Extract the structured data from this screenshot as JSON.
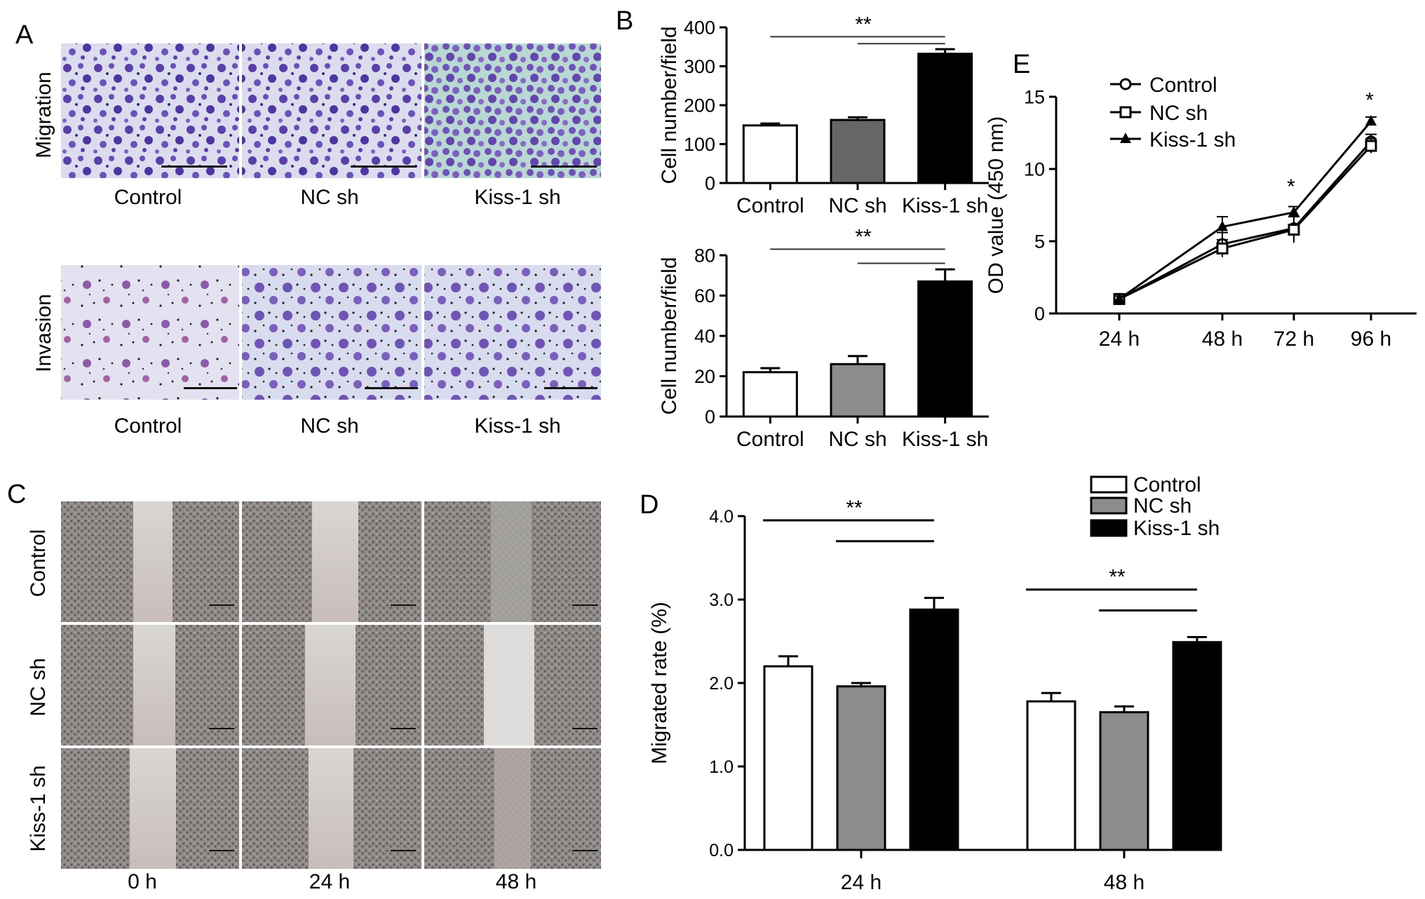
{
  "panels": {
    "A": {
      "letter": "A",
      "rows": [
        {
          "label": "Migration",
          "columns": [
            "Control",
            "NC sh",
            "Kiss-1 sh"
          ]
        },
        {
          "label": "Invasion",
          "columns": [
            "Control",
            "NC sh",
            "Kiss-1 sh"
          ]
        }
      ]
    },
    "C": {
      "letter": "C",
      "rows": [
        "Control",
        "NC sh",
        "Kiss-1 sh"
      ],
      "columns": [
        "0 h",
        "24 h",
        "48 h"
      ]
    }
  },
  "chart_data": [
    {
      "panel": "B",
      "letter": "B",
      "type": "bar",
      "categories": [
        "Control",
        "NC sh",
        "Kiss-1 sh"
      ],
      "values": [
        148,
        162,
        332
      ],
      "errors": [
        5,
        7,
        12
      ],
      "colors": [
        "#ffffff",
        "#666666",
        "#000000"
      ],
      "ylabel": "Cell number/field",
      "ylim": [
        0,
        400
      ],
      "yticks": [
        "0",
        "100",
        "200",
        "300",
        "400"
      ],
      "significance": "**"
    },
    {
      "panel": "B",
      "type": "bar",
      "categories": [
        "Control",
        "NC sh",
        "Kiss-1 sh"
      ],
      "values": [
        22,
        26,
        67
      ],
      "errors": [
        2,
        4,
        6
      ],
      "colors": [
        "#ffffff",
        "#8c8c8c",
        "#000000"
      ],
      "ylabel": "Cell number/field",
      "ylim": [
        0,
        80
      ],
      "yticks": [
        "0",
        "20",
        "40",
        "60",
        "80"
      ],
      "significance": "**"
    },
    {
      "panel": "D",
      "letter": "D",
      "type": "bar",
      "categories": [
        "24 h",
        "48 h"
      ],
      "series": [
        {
          "name": "Control",
          "values": [
            2.2,
            1.78
          ],
          "errors": [
            0.12,
            0.1
          ],
          "color": "#ffffff"
        },
        {
          "name": "NC sh",
          "values": [
            1.96,
            1.65
          ],
          "errors": [
            0.04,
            0.07
          ],
          "color": "#8c8c8c"
        },
        {
          "name": "Kiss-1 sh",
          "values": [
            2.88,
            2.49
          ],
          "errors": [
            0.14,
            0.06
          ],
          "color": "#000000"
        }
      ],
      "ylabel": "Migrated rate (%)",
      "ylim": [
        0,
        4
      ],
      "yticks": [
        "0.0",
        "1.0",
        "2.0",
        "3.0",
        "4.0"
      ],
      "significance": [
        "**",
        "**"
      ],
      "legend": "top-right"
    },
    {
      "panel": "E",
      "letter": "E",
      "type": "line",
      "x": [
        "24 h",
        "48 h",
        "72 h",
        "96 h"
      ],
      "series": [
        {
          "name": "Control",
          "marker": "circle",
          "values": [
            1.0,
            4.8,
            5.9,
            11.9
          ],
          "errors": [
            0.2,
            0.8,
            0.8,
            0.5
          ]
        },
        {
          "name": "NC sh",
          "marker": "square",
          "values": [
            1.0,
            4.5,
            5.8,
            11.6
          ],
          "errors": [
            0.2,
            0.6,
            0.9,
            0.5
          ]
        },
        {
          "name": "Kiss-1 sh",
          "marker": "triangle",
          "values": [
            1.0,
            6.0,
            7.0,
            13.3
          ],
          "errors": [
            0.2,
            0.7,
            0.4,
            0.3
          ]
        }
      ],
      "ylabel": "OD value (450 nm)",
      "ylim": [
        0,
        15
      ],
      "yticks": [
        "0",
        "5",
        "10",
        "15"
      ],
      "significance": [
        "*",
        "*"
      ],
      "legend": "top-left"
    }
  ]
}
